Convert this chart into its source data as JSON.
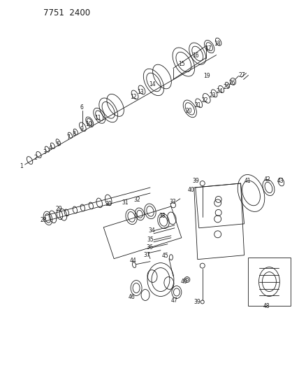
{
  "title": "7751  2400",
  "bg_color": "#ffffff",
  "line_color": "#1a1a1a",
  "fig_width": 4.28,
  "fig_height": 5.33,
  "dpi": 100
}
